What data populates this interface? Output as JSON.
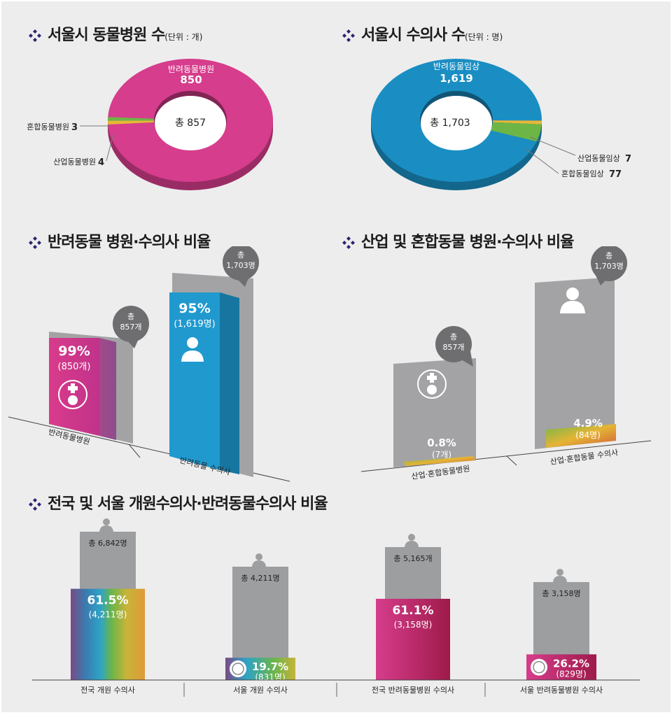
{
  "colors": {
    "pink": "#d63d8c",
    "blue": "#1a8ec2",
    "gray": "#9d9ea0",
    "green": "#6db546",
    "yellow": "#e6b838",
    "navy": "#2a2570",
    "bubble": "#6e6e70",
    "crimson": "#9e1a4a"
  },
  "icons": [
    "cross-diamond-icon",
    "vet-hospital-icon",
    "veterinarian-icon",
    "vet-badge-icon"
  ],
  "sections": {
    "hospitals_title": "서울시 동물병원 수",
    "hospitals_unit": "(단위 : 개)",
    "vets_title": "서울시 수의사 수",
    "vets_unit": "(단위 : 명)",
    "companion_title": "반려동물 병원·수의사 비율",
    "industrial_title": "산업 및 혼합동물 병원·수의사 비율",
    "national_title": "전국 및 서울 개원수의사·반려동물수의사 비율"
  },
  "chart_data": [
    {
      "type": "pie",
      "subtype": "donut",
      "labels": [
        "반려동물병원",
        "혼합동물병원",
        "산업동물병원"
      ],
      "values": [
        850,
        3,
        4
      ],
      "value_labels": [
        "850",
        "3",
        "4"
      ],
      "colors": [
        "#d63d8c",
        "#e6b838",
        "#6db546"
      ],
      "center_label": "총 857"
    },
    {
      "type": "pie",
      "subtype": "donut",
      "labels": [
        "반려동물임상",
        "산업동물임상",
        "혼합동물임상"
      ],
      "values": [
        1619,
        7,
        77
      ],
      "value_labels": [
        "1,619",
        "7",
        "77"
      ],
      "colors": [
        "#1a8ec2",
        "#e6b838",
        "#6db546"
      ],
      "center_label": "총 1,703"
    },
    {
      "type": "bar",
      "categories": [
        "반려동물병원",
        "반려동물 수의사"
      ],
      "values": [
        99,
        95
      ],
      "unit": "%",
      "pct_labels": [
        "99%",
        "95%"
      ],
      "count_labels": [
        "(850개)",
        "(1,619명)"
      ],
      "totals": [
        {
          "top": "총",
          "bottom": "857개"
        },
        {
          "top": "총",
          "bottom": "1,703명"
        }
      ],
      "colors": [
        "#d63d8c",
        "#1a8ec2"
      ]
    },
    {
      "type": "bar",
      "categories": [
        "산업·혼합동물병원",
        "산업·혼합동물 수의사"
      ],
      "values": [
        0.8,
        4.9
      ],
      "unit": "%",
      "pct_labels": [
        "0.8%",
        "4.9%"
      ],
      "count_labels": [
        "(7개)",
        "(84명)"
      ],
      "totals": [
        {
          "top": "총",
          "bottom": "857개"
        },
        {
          "top": "총",
          "bottom": "1,703명"
        }
      ]
    },
    {
      "type": "bar",
      "categories": [
        "전국 개원 수의사",
        "서울 개원 수의사",
        "전국 반려동물병원 수의사",
        "서울 반려동물병원 수의사"
      ],
      "values": [
        61.5,
        19.7,
        61.1,
        26.2
      ],
      "unit": "%",
      "totals": [
        "총 6,842명",
        "총 4,211명",
        "총 5,165개",
        "총 3,158명"
      ],
      "pct_labels": [
        "61.5%",
        "19.7%",
        "61.1%",
        "26.2%"
      ],
      "count_labels": [
        "(4,211명)",
        "(831명)",
        "(3,158명)",
        "(829명)"
      ]
    }
  ]
}
